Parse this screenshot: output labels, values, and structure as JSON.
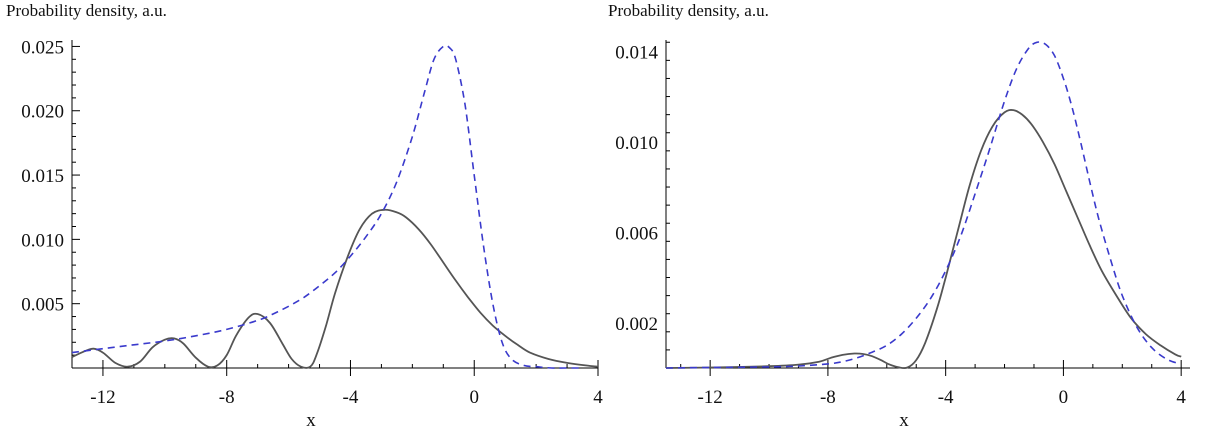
{
  "chart_data": [
    {
      "type": "line",
      "title": "",
      "ylabel": "Probability density, a.u.",
      "xlabel": "x",
      "xlim": [
        -13,
        4
      ],
      "ylim": [
        0,
        0.0255
      ],
      "x_ticks": [
        -12,
        -8,
        -4,
        0,
        4
      ],
      "x_tick_labels": [
        "-12",
        "-8",
        "-4",
        "0",
        "4"
      ],
      "y_ticks": [
        0.005,
        0.01,
        0.015,
        0.02,
        0.025
      ],
      "y_tick_labels": [
        "0.005",
        "0.010",
        "0.015",
        "0.020",
        "0.025"
      ],
      "grid": false,
      "series": [
        {
          "style": "solid",
          "color": "#555555",
          "x": [
            -13,
            -12.6,
            -12.3,
            -12,
            -11.6,
            -11.2,
            -10.8,
            -10.4,
            -10.0,
            -9.7,
            -9.4,
            -9.0,
            -8.6,
            -8.3,
            -8.0,
            -7.7,
            -7.3,
            -7.0,
            -6.6,
            -6.2,
            -5.9,
            -5.6,
            -5.3,
            -5.1,
            -4.8,
            -4.5,
            -4.1,
            -3.7,
            -3.3,
            -2.9,
            -2.5,
            -2.2,
            -1.8,
            -1.4,
            -1.0,
            -0.6,
            -0.2,
            0.2,
            0.6,
            1.0,
            1.4,
            1.8,
            2.4,
            3.0,
            3.6,
            4.0
          ],
          "y": [
            0.00085,
            0.0013,
            0.0015,
            0.0012,
            0.0004,
            0.0001,
            0.0005,
            0.0016,
            0.0022,
            0.0023,
            0.0019,
            0.0008,
            0.0001,
            0.0002,
            0.001,
            0.0025,
            0.0039,
            0.0042,
            0.0035,
            0.0019,
            0.0007,
            0.0001,
            0.0001,
            0.001,
            0.0032,
            0.0058,
            0.0086,
            0.0108,
            0.012,
            0.0123,
            0.0121,
            0.0117,
            0.0108,
            0.0096,
            0.0082,
            0.0068,
            0.0055,
            0.0043,
            0.0033,
            0.0025,
            0.0018,
            0.0012,
            0.0007,
            0.0004,
            0.0002,
            0.0001
          ]
        },
        {
          "style": "dashed",
          "color": "#3a3acc",
          "x": [
            -13,
            -12,
            -11,
            -10,
            -9,
            -8,
            -7,
            -6.5,
            -6,
            -5.5,
            -5,
            -4.5,
            -4,
            -3.5,
            -3,
            -2.5,
            -2,
            -1.6,
            -1.3,
            -1.0,
            -0.8,
            -0.6,
            -0.3,
            0.0,
            0.3,
            0.6,
            0.9,
            1.2,
            1.6,
            2.0,
            2.5,
            3.0,
            3.5
          ],
          "y": [
            0.0012,
            0.0015,
            0.0018,
            0.0021,
            0.0025,
            0.003,
            0.0037,
            0.0042,
            0.0048,
            0.0055,
            0.0064,
            0.0074,
            0.0087,
            0.0102,
            0.012,
            0.0145,
            0.018,
            0.0215,
            0.024,
            0.025,
            0.0249,
            0.024,
            0.0205,
            0.015,
            0.0095,
            0.005,
            0.002,
            0.0007,
            0.0002,
            0.0001,
            0.0,
            0.0,
            0.0
          ]
        }
      ]
    },
    {
      "type": "line",
      "title": "",
      "ylabel": "Probability density, a.u.",
      "xlabel": "x",
      "xlim": [
        -13.5,
        4.3
      ],
      "ylim": [
        0,
        0.0145
      ],
      "x_ticks": [
        -12,
        -8,
        -4,
        0,
        4
      ],
      "x_tick_labels": [
        "-12",
        "-8",
        "-4",
        "0",
        "4"
      ],
      "y_ticks": [
        0.002,
        0.006,
        0.01,
        0.014
      ],
      "y_tick_labels": [
        "0.002",
        "0.006",
        "0.010",
        "0.014"
      ],
      "grid": false,
      "series": [
        {
          "style": "solid",
          "color": "#555555",
          "x": [
            -13.5,
            -12,
            -10,
            -9,
            -8.3,
            -7.9,
            -7.5,
            -7.1,
            -6.8,
            -6.5,
            -6.2,
            -5.9,
            -5.6,
            -5.3,
            -5.0,
            -4.7,
            -4.3,
            -4.0,
            -3.6,
            -3.2,
            -2.8,
            -2.4,
            -2.0,
            -1.7,
            -1.4,
            -1.1,
            -0.7,
            -0.3,
            0.1,
            0.5,
            0.9,
            1.3,
            1.8,
            2.3,
            2.8,
            3.3,
            3.8,
            4.0
          ],
          "y": [
            0.0,
            2e-05,
            8e-05,
            0.00015,
            0.00028,
            0.00045,
            0.00058,
            0.00064,
            0.00062,
            0.00052,
            0.00035,
            0.00015,
            3e-05,
            2e-05,
            0.00035,
            0.0011,
            0.0026,
            0.004,
            0.006,
            0.008,
            0.0096,
            0.0107,
            0.0113,
            0.0114,
            0.0112,
            0.0108,
            0.01,
            0.009,
            0.0078,
            0.0066,
            0.0054,
            0.0043,
            0.0032,
            0.0022,
            0.0015,
            0.001,
            0.0006,
            0.0005
          ]
        },
        {
          "style": "dashed",
          "color": "#3a3acc",
          "x": [
            -13.5,
            -12,
            -10,
            -9,
            -8,
            -7.5,
            -7,
            -6.5,
            -6,
            -5.5,
            -5,
            -4.5,
            -4,
            -3.5,
            -3,
            -2.5,
            -2,
            -1.6,
            -1.2,
            -0.9,
            -0.6,
            -0.3,
            0.0,
            0.3,
            0.6,
            0.9,
            1.2,
            1.6,
            2.0,
            2.5,
            3.0,
            3.5,
            3.9
          ],
          "y": [
            0.0,
            2e-05,
            5e-05,
            9e-05,
            0.00018,
            0.00028,
            0.00045,
            0.0007,
            0.001,
            0.0015,
            0.0022,
            0.0031,
            0.0043,
            0.0058,
            0.0077,
            0.0097,
            0.0118,
            0.0132,
            0.0141,
            0.0144,
            0.0143,
            0.0138,
            0.0128,
            0.0115,
            0.0099,
            0.0082,
            0.0066,
            0.0048,
            0.0032,
            0.0018,
            0.0009,
            0.0004,
            0.0002
          ]
        }
      ]
    }
  ]
}
